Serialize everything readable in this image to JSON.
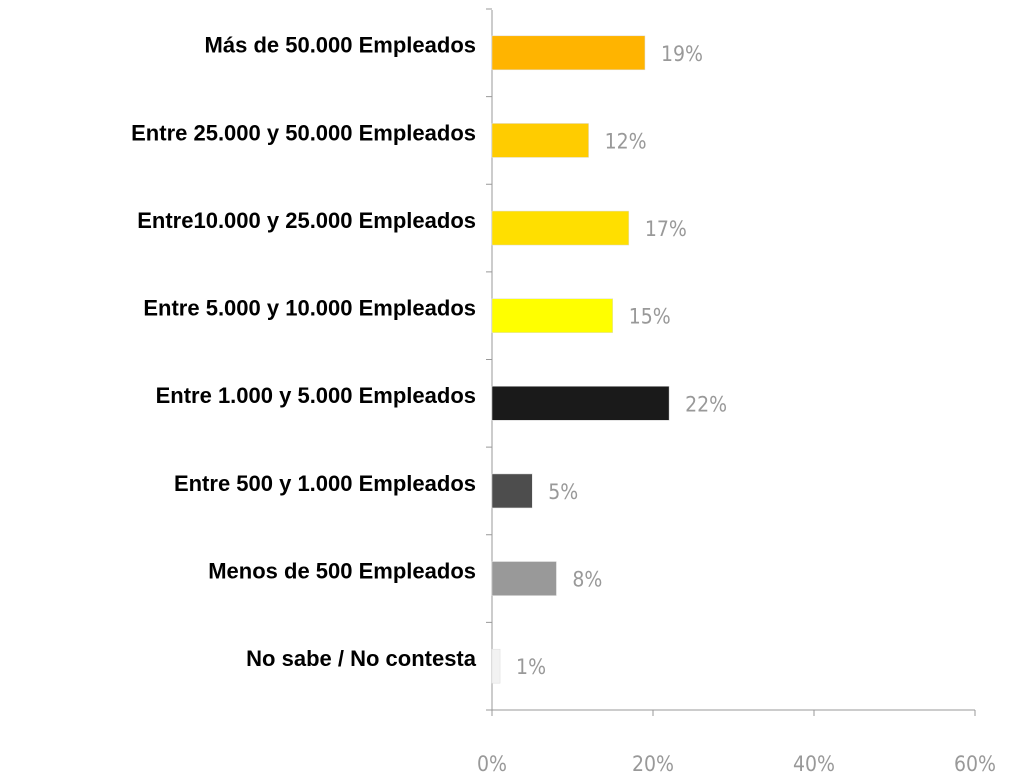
{
  "chart_data": {
    "type": "barh",
    "categories": [
      "Más de 50.000 Empleados",
      "Entre 25.000 y 50.000 Empleados",
      "Entre10.000 y 25.000 Empleados",
      "Entre 5.000 y 10.000 Empleados",
      "Entre 1.000 y 5.000 Empleados",
      "Entre 500 y 1.000 Empleados",
      "Menos de 500 Empleados",
      "No sabe / No contesta"
    ],
    "values": [
      19,
      12,
      17,
      15,
      22,
      5,
      8,
      1
    ],
    "value_labels": [
      "19%",
      "12%",
      "17%",
      "15%",
      "22%",
      "5%",
      "8%",
      "1%"
    ],
    "colors": [
      "#ffb400",
      "#ffcc00",
      "#ffdf00",
      "#ffff00",
      "#1a1a1a",
      "#4d4d4d",
      "#999999",
      "#f2f2f2"
    ],
    "xlim": [
      0,
      60
    ],
    "xticks": [
      {
        "value": 0,
        "label": "0%"
      },
      {
        "value": 20,
        "label": "20%"
      },
      {
        "value": 40,
        "label": "40%"
      },
      {
        "value": 60,
        "label": "60%"
      }
    ]
  }
}
